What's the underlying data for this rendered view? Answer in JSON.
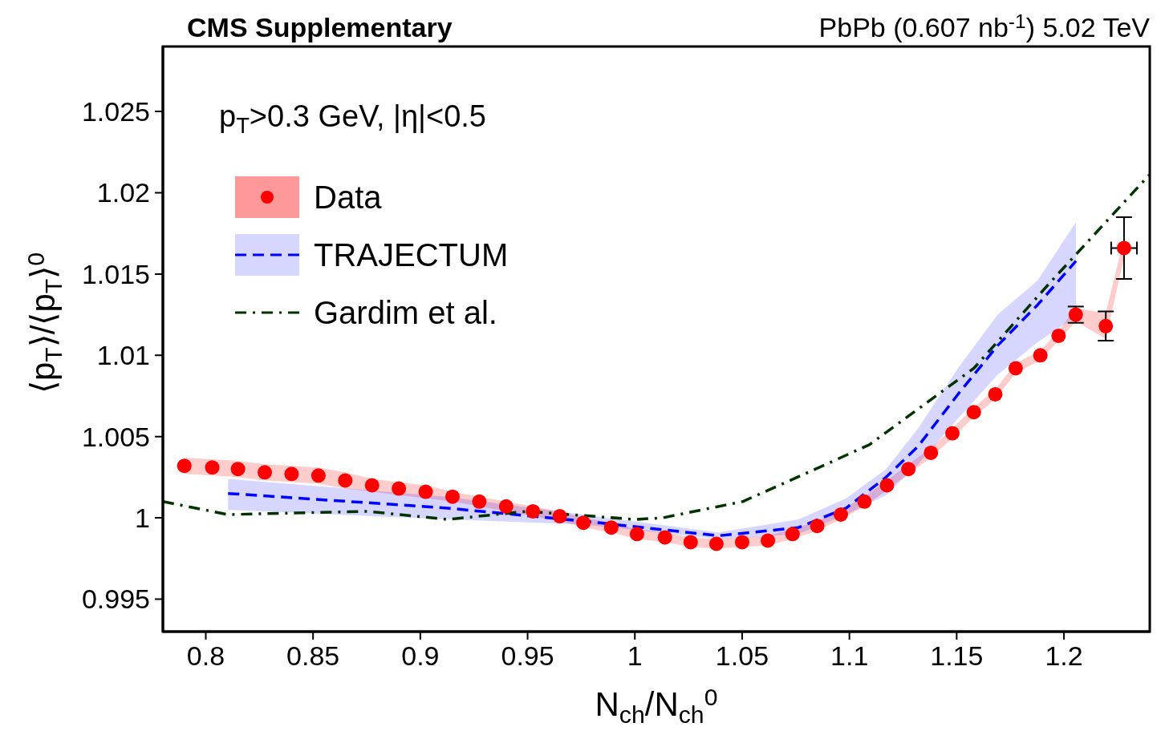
{
  "chart_data": {
    "type": "scatter",
    "title": "CMS Supplementary",
    "subtitle": "PbPb (0.607 nb$^{-1}$) 5.02 TeV",
    "xlabel": "N$_{ch}$/N$_{ch}$$^{0}$",
    "ylabel": "⟨p$_{T}$⟩/⟨p$_{T}$⟩$^{0}$",
    "annotations": [
      "p$_{T}$>0.3 GeV, |η|<0.5"
    ],
    "xlim": [
      0.78,
      1.24
    ],
    "xticks": [
      0.8,
      0.85,
      0.9,
      0.95,
      1,
      1.05,
      1.1,
      1.15,
      1.2
    ],
    "ylim": [
      0.993,
      1.029
    ],
    "yticks": [
      0.995,
      1,
      1.005,
      1.01,
      1.015,
      1.02,
      1.025
    ],
    "legend": "top left",
    "grid": false,
    "series": [
      {
        "name": "Data",
        "marker": "circle",
        "color": "#ff0000",
        "x": [
          0.79,
          0.803,
          0.815,
          0.8275,
          0.84,
          0.8525,
          0.865,
          0.8775,
          0.89,
          0.9025,
          0.915,
          0.9275,
          0.94,
          0.9525,
          0.965,
          0.976,
          0.989,
          1.001,
          1.014,
          1.026,
          1.038,
          1.05,
          1.062,
          1.0735,
          1.085,
          1.096,
          1.107,
          1.1175,
          1.1275,
          1.138,
          1.148,
          1.158,
          1.168,
          1.1775,
          1.189,
          1.1975,
          1.2055,
          1.2195,
          1.228
        ],
        "values": [
          1.0032,
          1.0031,
          1.003,
          1.0028,
          1.0027,
          1.0026,
          1.0023,
          1.002,
          1.0018,
          1.0016,
          1.0013,
          1.001,
          1.0007,
          1.0004,
          1.0001,
          0.9997,
          0.9994,
          0.999,
          0.9988,
          0.9985,
          0.9984,
          0.9985,
          0.9986,
          0.999,
          0.9995,
          1.0002,
          1.001,
          1.002,
          1.003,
          1.004,
          1.0052,
          1.0065,
          1.0076,
          1.0092,
          1.01,
          1.0112,
          1.0125,
          1.0118,
          1.0166
        ],
        "lower": [
          1.0027,
          1.0026,
          1.0025,
          1.0023,
          1.0022,
          1.0021,
          1.0018,
          1.0016,
          1.0014,
          1.0012,
          1.001,
          1.0007,
          1.0004,
          1.0001,
          0.9998,
          0.9994,
          0.9991,
          0.9987,
          0.9985,
          0.9982,
          0.9981,
          0.9982,
          0.9983,
          0.9987,
          0.9992,
          0.9999,
          1.0007,
          1.0017,
          1.0027,
          1.0037,
          1.0049,
          1.0062,
          1.0073,
          1.0089,
          1.0097,
          1.0109,
          1.0121,
          1.011,
          1.016
        ],
        "upper": [
          1.0037,
          1.0036,
          1.0035,
          1.0033,
          1.0032,
          1.0031,
          1.0028,
          1.0024,
          1.0022,
          1.002,
          1.0016,
          1.0013,
          1.001,
          1.0007,
          1.0004,
          1.0,
          0.9997,
          0.9993,
          0.9991,
          0.9988,
          0.9987,
          0.9988,
          0.9989,
          0.9993,
          0.9998,
          1.0005,
          1.0013,
          1.0023,
          1.0033,
          1.0043,
          1.0055,
          1.0068,
          1.0079,
          1.0095,
          1.0103,
          1.0115,
          1.0129,
          1.0126,
          1.0172
        ],
        "errors": [
          null,
          null,
          null,
          null,
          null,
          null,
          null,
          null,
          null,
          null,
          null,
          null,
          null,
          null,
          null,
          null,
          null,
          null,
          null,
          null,
          null,
          null,
          null,
          null,
          null,
          null,
          null,
          null,
          null,
          null,
          null,
          null,
          null,
          null,
          null,
          null,
          0.0005,
          0.0009,
          0.0019
        ],
        "xerrors": [
          null,
          null,
          null,
          null,
          null,
          null,
          null,
          null,
          null,
          null,
          null,
          null,
          null,
          null,
          null,
          null,
          null,
          null,
          null,
          null,
          null,
          null,
          null,
          null,
          null,
          null,
          null,
          null,
          null,
          null,
          null,
          null,
          null,
          null,
          null,
          null,
          null,
          null,
          0.006
        ]
      },
      {
        "name": "TRAJECTUM",
        "type": "line",
        "line_style": "dashed",
        "color": "#0000ff",
        "x": [
          0.8104,
          0.9126,
          0.9758,
          1.039,
          1.0762,
          1.0985,
          1.1171,
          1.132,
          1.1506,
          1.1691,
          1.1877,
          1.2056
        ],
        "values": [
          1.0015,
          1.0006,
          0.9998,
          0.9989,
          0.9994,
          1.0006,
          1.0025,
          1.0044,
          1.0076,
          1.0106,
          1.0131,
          1.0158
        ],
        "lower": [
          1.0005,
          0.9999,
          0.9996,
          0.9987,
          0.999,
          1.0002,
          1.0014,
          1.0033,
          1.0061,
          1.0088,
          1.0108,
          1.0124
        ],
        "upper": [
          1.0024,
          1.0013,
          1.0002,
          0.9991,
          0.9999,
          1.0012,
          1.003,
          1.0055,
          1.0092,
          1.0125,
          1.0146,
          1.0182
        ]
      },
      {
        "name": "Gardim et al.",
        "type": "line",
        "line_style": "dashdot",
        "color": "#003300",
        "x": [
          0.78,
          0.8104,
          0.8755,
          0.9126,
          0.9498,
          1.0,
          1.013,
          1.0502,
          1.0792,
          1.1093,
          1.158,
          1.1937,
          1.2398
        ],
        "values": [
          1.001,
          1.0002,
          1.0004,
          0.9999,
          1.0004,
          0.9999,
          1.0,
          1.001,
          1.0027,
          1.0045,
          1.0092,
          1.0145,
          1.0211
        ]
      }
    ]
  }
}
